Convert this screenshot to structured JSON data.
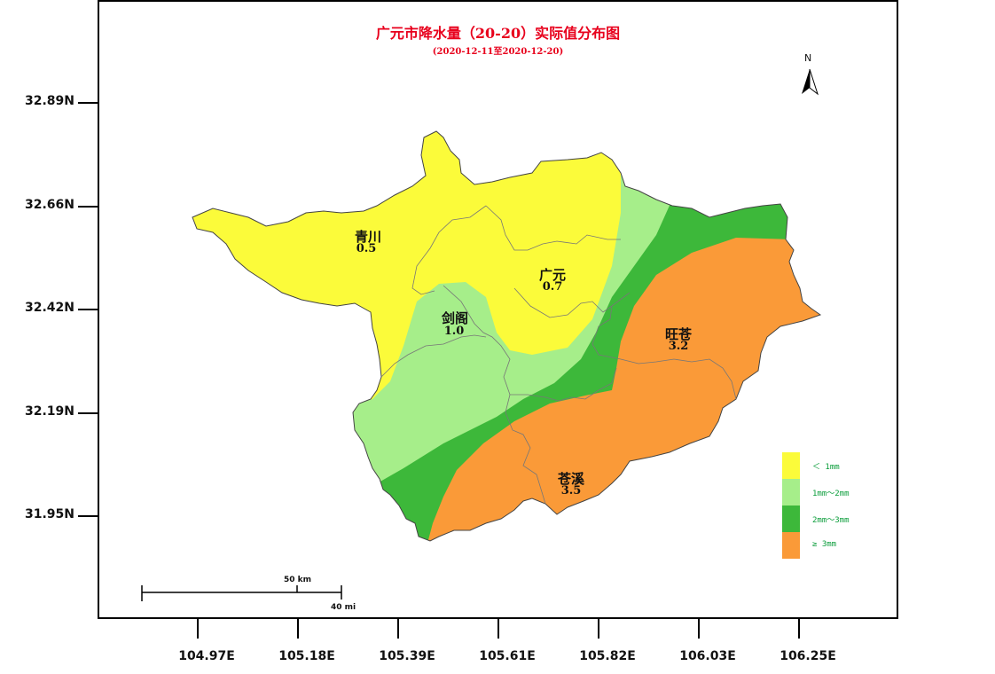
{
  "map": {
    "title": "广元市降水量（20-20）实际值分布图",
    "subtitle": "(2020-12-11至2020-12-20)",
    "north_label": "N",
    "lat_ticks": [
      "32.89N",
      "32.66N",
      "32.42N",
      "32.19N",
      "31.95N"
    ],
    "lon_ticks": [
      "104.97E",
      "105.18E",
      "105.39E",
      "105.61E",
      "105.82E",
      "106.03E",
      "106.25E"
    ],
    "regions": [
      {
        "name": "青川",
        "value": "0.5"
      },
      {
        "name": "广元",
        "value": "0.7"
      },
      {
        "name": "剑阁",
        "value": "1.0"
      },
      {
        "name": "旺苍",
        "value": "3.2"
      },
      {
        "name": "苍溪",
        "value": "3.5"
      }
    ],
    "legend": [
      {
        "label": "＜ 1mm",
        "color": "#fbfb3a"
      },
      {
        "label": "1mm～2mm",
        "color": "#a6ee8a"
      },
      {
        "label": "2mm～3mm",
        "color": "#3db83a"
      },
      {
        "label": "≥ 3mm",
        "color": "#fa9a38"
      }
    ],
    "scale_bar": {
      "km_label": "50 km",
      "mi_label": "40 mi"
    }
  }
}
